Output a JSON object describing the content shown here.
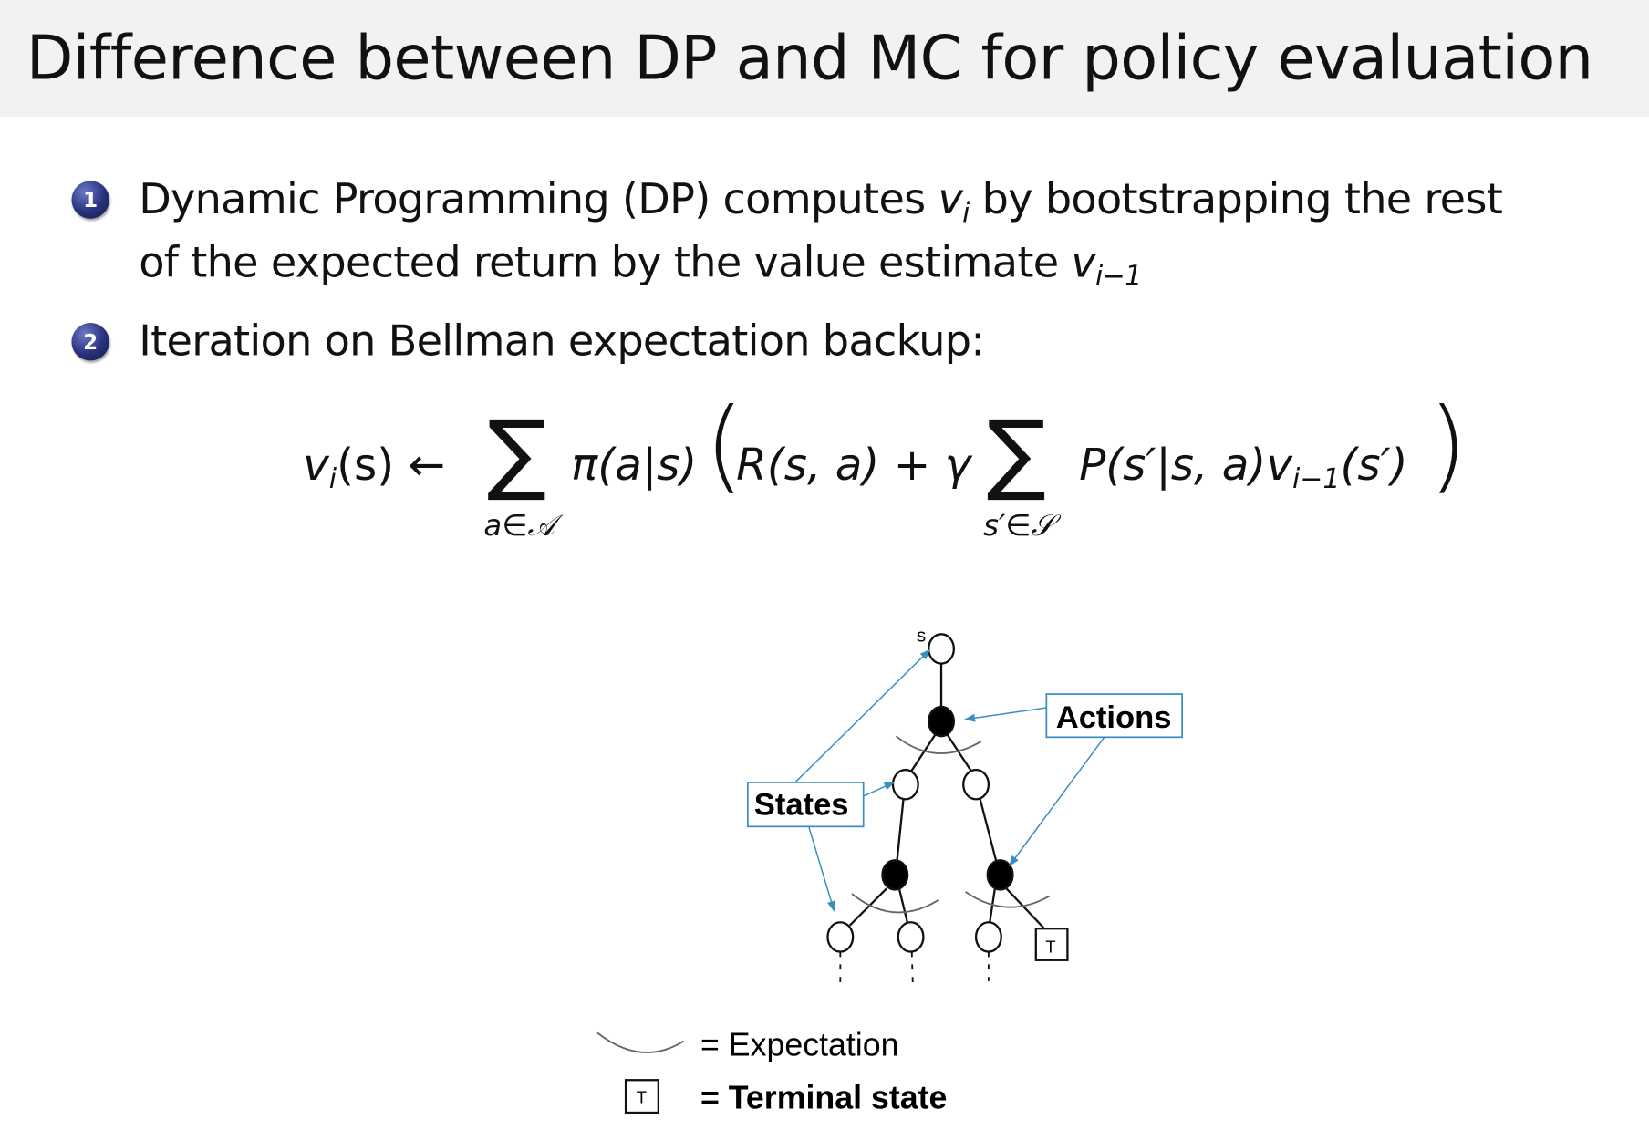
{
  "slide": {
    "title": "Difference between DP and MC for policy evaluation",
    "bullets": [
      {
        "number": "1",
        "line1_a": "Dynamic Programming (DP) computes ",
        "line1_var": "v",
        "line1_sub": "i",
        "line1_b": " by bootstrapping the rest",
        "line2_a": "of the expected return by the value estimate ",
        "line2_var": "v",
        "line2_sub": "i−1"
      },
      {
        "number": "2",
        "text": "Iteration on Bellman expectation backup:"
      }
    ],
    "formula": {
      "lhs": "v",
      "lhs_sub": "i",
      "lhs_rest": "(s) ←",
      "sum1_symbol": "∑",
      "sum1_under": "a∈𝒜",
      "policy": "π(a|s)",
      "open_paren": "(",
      "reward": "R(s, a) + γ",
      "sum2_symbol": "∑",
      "sum2_under": "s′∈𝒮",
      "transition": "P(s′|s, a)v",
      "transition_sub": "i−1",
      "transition_rest": "(s′)",
      "close_paren": ")"
    },
    "diagram": {
      "root_label": "s",
      "actions_label": "Actions",
      "states_label": "States",
      "terminal_glyph": "T",
      "legend": {
        "expectation": "= Expectation",
        "terminal": "= Terminal state",
        "terminal_glyph": "T"
      },
      "colors": {
        "callout": "#3a8fc0",
        "header_band": "#f2f2f2",
        "bullet": "#28307a"
      }
    }
  }
}
